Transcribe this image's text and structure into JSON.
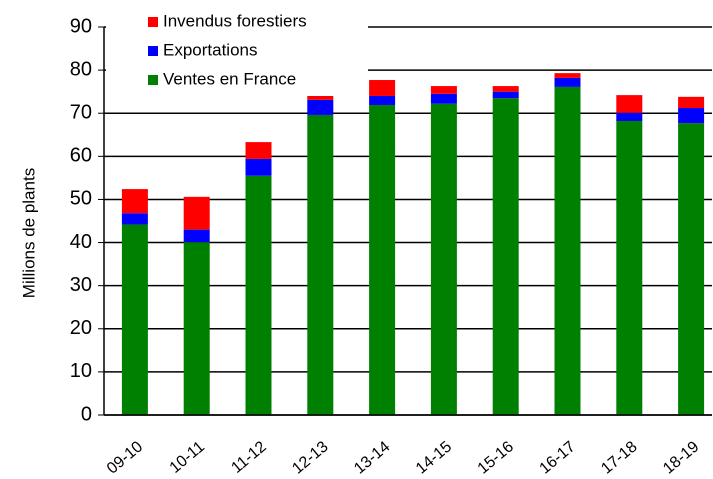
{
  "chart_data": {
    "type": "stacked_bar",
    "y_label": "Millions de plants",
    "categories": [
      "09-10",
      "10-11",
      "11-12",
      "12-13",
      "13-14",
      "14-15",
      "15-16",
      "16-17",
      "17-18",
      "18-19"
    ],
    "series": [
      {
        "name": "Ventes en France",
        "color": "#008000",
        "values": [
          44.2,
          40.1,
          55.5,
          69.6,
          71.9,
          72.2,
          73.5,
          76.1,
          68.2,
          67.7
        ]
      },
      {
        "name": "Exportations",
        "color": "#0000ff",
        "values": [
          2.6,
          2.9,
          3.9,
          3.5,
          2.1,
          2.3,
          1.5,
          2.1,
          1.9,
          3.5
        ]
      },
      {
        "name": "Invendus forestiers",
        "color": "#ff0000",
        "values": [
          5.6,
          7.6,
          3.9,
          1.1,
          3.7,
          1.8,
          1.3,
          1.1,
          4.1,
          2.6
        ]
      }
    ],
    "ylim": [
      0,
      90
    ],
    "yticks": [
      0,
      10,
      20,
      30,
      40,
      50,
      60,
      70,
      80,
      90
    ],
    "grid": true,
    "legend": "top-left"
  }
}
